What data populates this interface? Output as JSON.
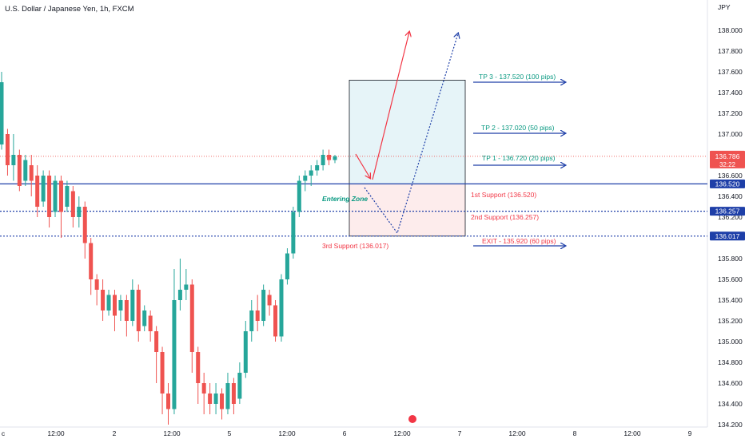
{
  "header": {
    "title": "U.S. Dollar / Japanese Yen, 1h, FXCM",
    "currency": "JPY"
  },
  "colors": {
    "up": "#26a69a",
    "down": "#ef5350",
    "blue": "#1e3fa8",
    "tp_text": "#089981",
    "support_text": "#f23645",
    "grid": "#f0f3fa"
  },
  "chart_data": {
    "type": "candlestick",
    "y_axis": {
      "range": [
        134.2,
        138.2
      ],
      "ticks": [
        "138.000",
        "137.800",
        "137.600",
        "137.400",
        "137.200",
        "137.000",
        "136.800",
        "136.600",
        "136.400",
        "136.200",
        "135.800",
        "135.600",
        "135.400",
        "135.200",
        "135.000",
        "134.800",
        "134.600",
        "134.400",
        "134.200"
      ]
    },
    "x_axis": {
      "ticks": [
        "c",
        "12:00",
        "2",
        "12:00",
        "5",
        "12:00",
        "6",
        "12:00",
        "7",
        "12:00",
        "8",
        "12:00",
        "9"
      ]
    },
    "price_labels": [
      {
        "value": "136.786",
        "sub": "32:22",
        "color": "#ef5350",
        "price": 136.786
      },
      {
        "value": "136.520",
        "color": "#1e3fa8",
        "price": 136.52
      },
      {
        "value": "136.257",
        "color": "#1e3fa8",
        "price": 136.257
      },
      {
        "value": "136.017",
        "color": "#1e3fa8",
        "price": 136.017
      }
    ],
    "candles": [
      [
        136.9,
        137.5,
        136.85,
        137.6
      ],
      [
        137.0,
        136.7,
        136.6,
        137.05
      ],
      [
        136.7,
        136.8,
        136.55,
        137.0
      ],
      [
        136.8,
        136.5,
        136.45,
        136.85
      ],
      [
        136.55,
        136.75,
        136.5,
        136.8
      ],
      [
        136.7,
        136.55,
        136.4,
        136.8
      ],
      [
        136.6,
        136.3,
        136.2,
        136.7
      ],
      [
        136.35,
        136.6,
        136.3,
        136.65
      ],
      [
        136.6,
        136.2,
        136.1,
        136.65
      ],
      [
        136.25,
        136.55,
        136.2,
        136.6
      ],
      [
        136.55,
        136.25,
        136.0,
        136.6
      ],
      [
        136.3,
        136.5,
        136.25,
        136.55
      ],
      [
        136.45,
        136.2,
        136.1,
        136.5
      ],
      [
        136.2,
        136.3,
        136.1,
        136.4
      ],
      [
        136.3,
        135.95,
        135.8,
        136.35
      ],
      [
        135.95,
        135.6,
        135.45,
        136.0
      ],
      [
        135.6,
        135.5,
        135.35,
        135.65
      ],
      [
        135.5,
        135.3,
        135.2,
        135.6
      ],
      [
        135.3,
        135.45,
        135.25,
        135.5
      ],
      [
        135.45,
        135.25,
        135.1,
        135.5
      ],
      [
        135.3,
        135.4,
        135.2,
        135.45
      ],
      [
        135.4,
        135.2,
        135.05,
        135.45
      ],
      [
        135.2,
        135.5,
        135.15,
        135.6
      ],
      [
        135.5,
        135.1,
        135.0,
        135.55
      ],
      [
        135.15,
        135.3,
        135.1,
        135.35
      ],
      [
        135.25,
        135.1,
        135.0,
        135.3
      ],
      [
        135.1,
        134.9,
        134.6,
        135.15
      ],
      [
        134.9,
        134.5,
        134.3,
        134.95
      ],
      [
        134.5,
        134.35,
        134.2,
        134.6
      ],
      [
        134.35,
        135.4,
        134.3,
        135.7
      ],
      [
        135.4,
        135.5,
        135.3,
        135.8
      ],
      [
        135.5,
        135.55,
        135.4,
        135.7
      ],
      [
        135.55,
        134.9,
        134.7,
        135.6
      ],
      [
        134.9,
        134.6,
        134.4,
        134.95
      ],
      [
        134.6,
        134.5,
        134.3,
        134.7
      ],
      [
        134.5,
        134.4,
        134.3,
        134.6
      ],
      [
        134.4,
        134.5,
        134.3,
        134.6
      ],
      [
        134.5,
        134.35,
        134.25,
        134.55
      ],
      [
        134.35,
        134.6,
        134.3,
        134.7
      ],
      [
        134.6,
        134.4,
        134.3,
        134.65
      ],
      [
        134.45,
        134.7,
        134.4,
        134.8
      ],
      [
        134.7,
        135.1,
        134.65,
        135.2
      ],
      [
        135.1,
        135.3,
        135.0,
        135.4
      ],
      [
        135.3,
        135.2,
        135.1,
        135.45
      ],
      [
        135.2,
        135.5,
        135.15,
        135.55
      ],
      [
        135.45,
        135.35,
        135.25,
        135.5
      ],
      [
        135.35,
        135.05,
        135.0,
        135.4
      ],
      [
        135.05,
        135.6,
        135.0,
        135.65
      ],
      [
        135.6,
        135.85,
        135.55,
        135.9
      ],
      [
        135.85,
        136.25,
        135.8,
        136.3
      ],
      [
        136.25,
        136.55,
        136.2,
        136.6
      ],
      [
        136.55,
        136.6,
        136.45,
        136.65
      ],
      [
        136.6,
        136.65,
        136.5,
        136.7
      ],
      [
        136.65,
        136.7,
        136.6,
        136.75
      ],
      [
        136.7,
        136.8,
        136.65,
        136.85
      ],
      [
        136.8,
        136.75,
        136.7,
        136.85
      ],
      [
        136.75,
        136.786,
        136.72,
        136.8
      ]
    ],
    "annotations": [
      {
        "text": "TP 3 - 137.520 (100 pips)",
        "color": "#089981",
        "price": 137.52
      },
      {
        "text": "TP 2 - 137.020 (50 pips)",
        "color": "#089981",
        "price": 137.02
      },
      {
        "text": "TP 1 - 136.720 (20 pips)",
        "color": "#089981",
        "price": 136.72
      },
      {
        "text": "1st Support (136.520)",
        "color": "#f23645",
        "price": 136.52
      },
      {
        "text": "2nd Support (136.257)",
        "color": "#f23645",
        "price": 136.257
      },
      {
        "text": "3rd Support (136.017)",
        "color": "#f23645",
        "price": 136.017
      },
      {
        "text": "EXIT - 135.920 (60 pips)",
        "color": "#f23645",
        "price": 135.92
      },
      {
        "text": "Entering Zone",
        "color": "#089981",
        "price": 136.4
      }
    ],
    "zones": [
      {
        "name": "target-zone",
        "top": 137.52,
        "bottom": 136.52,
        "color": "#e6f4f8"
      },
      {
        "name": "stop-zone",
        "top": 136.52,
        "bottom": 136.017,
        "color": "#fdecec"
      }
    ]
  }
}
